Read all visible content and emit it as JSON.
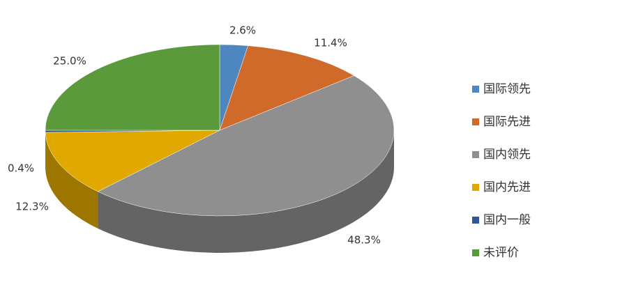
{
  "chart_data": {
    "type": "pie3d",
    "categories": [
      "国际领先",
      "国际先进",
      "国内领先",
      "国内先进",
      "国内一般",
      "未评价"
    ],
    "values": [
      2.6,
      11.4,
      48.3,
      12.3,
      0.4,
      25.0
    ],
    "value_labels": [
      "2.6%",
      "11.4%",
      "48.3%",
      "12.3%",
      "0.4%",
      "25.0%"
    ],
    "colors": [
      "#4e86c0",
      "#d06a2a",
      "#8f8f8f",
      "#e0a800",
      "#2f5596",
      "#5b9a3b"
    ],
    "legend": "right"
  }
}
